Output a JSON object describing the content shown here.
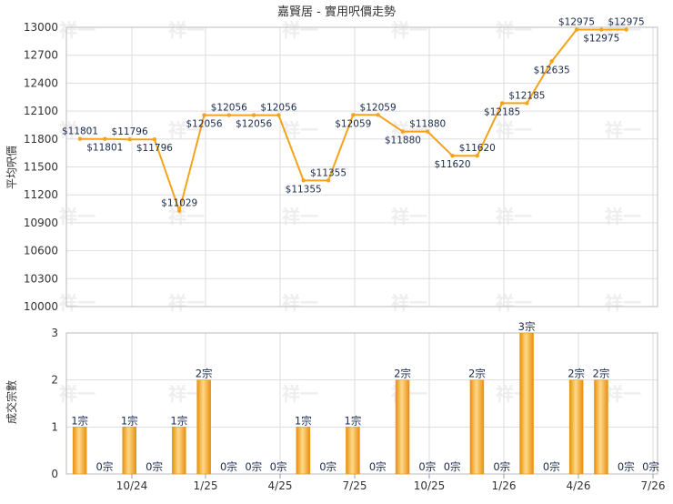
{
  "chart_data": [
    {
      "type": "line",
      "title": "嘉賢居 - 實用呎價走勢",
      "ylabel": "平均呎價",
      "ylim": [
        10000,
        13000
      ],
      "yticks": [
        10000,
        10300,
        10600,
        10900,
        11200,
        11500,
        11800,
        12100,
        12400,
        12700,
        13000
      ],
      "grid": true,
      "line_color": "#f5a31a",
      "x_tick_labels": [
        "10/24",
        "1/25",
        "4/25",
        "7/25",
        "10/25",
        "1/26",
        "4/26",
        "7/26"
      ],
      "series": [
        {
          "values": [
            11801,
            11801,
            11796,
            11796,
            11029,
            12056,
            12056,
            12056,
            12056,
            11355,
            11355,
            12059,
            12059,
            11880,
            11880,
            11620,
            11620,
            12185,
            12185,
            12635,
            12975,
            12975,
            12975
          ],
          "labels": [
            "$11801",
            "$11801",
            "$11796",
            "$11796",
            "$11029",
            "$12056",
            "$12056",
            "$12056",
            "$12056",
            "$11355",
            "$11355",
            "$12059",
            "$12059",
            "$11880",
            "$11880",
            "$11620",
            "$11620",
            "$12185",
            "$12185",
            "$12635",
            "$12975",
            "$12975",
            "$12975"
          ]
        }
      ]
    },
    {
      "type": "bar",
      "ylabel": "成交宗數",
      "ylim": [
        0,
        3
      ],
      "yticks": [
        0,
        1,
        2,
        3
      ],
      "grid": true,
      "bar_color": "#f5a31a",
      "x_tick_labels": [
        "10/24",
        "1/25",
        "4/25",
        "7/25",
        "10/25",
        "1/26",
        "4/26",
        "7/26"
      ],
      "values": [
        1,
        0,
        1,
        0,
        1,
        2,
        0,
        0,
        0,
        1,
        0,
        1,
        0,
        2,
        0,
        0,
        2,
        0,
        3,
        0,
        2,
        2,
        0,
        0
      ],
      "labels": [
        "1宗",
        "0宗",
        "1宗",
        "0宗",
        "1宗",
        "2宗",
        "0宗",
        "0宗",
        "0宗",
        "1宗",
        "0宗",
        "1宗",
        "0宗",
        "2宗",
        "0宗",
        "0宗",
        "2宗",
        "0宗",
        "3宗",
        "0宗",
        "2宗",
        "2宗",
        "0宗",
        "0宗"
      ]
    }
  ],
  "watermark": "祥一"
}
